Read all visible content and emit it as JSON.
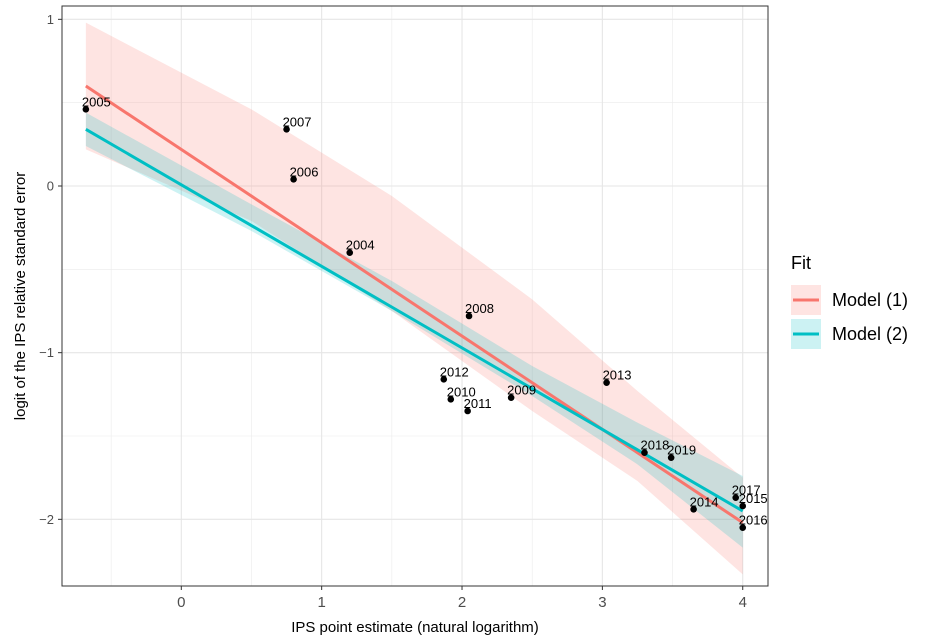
{
  "chart_data": {
    "type": "scatter",
    "title": "",
    "xlabel": "IPS point estimate (natural logarithm)",
    "ylabel": "logit of the IPS relative standard error",
    "xlim": [
      -0.85,
      4.18
    ],
    "ylim": [
      -2.4,
      1.08
    ],
    "x_ticks": [
      0,
      1,
      2,
      3,
      4
    ],
    "y_ticks": [
      1,
      0,
      -1,
      -2
    ],
    "x_tick_labels": [
      "0",
      "1",
      "2",
      "3",
      "4"
    ],
    "y_tick_labels": [
      "1",
      "0",
      "−1",
      "−2"
    ],
    "grid": true,
    "points": [
      {
        "label": "2005",
        "x": -0.68,
        "y": 0.46
      },
      {
        "label": "2007",
        "x": 0.75,
        "y": 0.34
      },
      {
        "label": "2006",
        "x": 0.8,
        "y": 0.04
      },
      {
        "label": "2004",
        "x": 1.2,
        "y": -0.4
      },
      {
        "label": "2008",
        "x": 2.05,
        "y": -0.78
      },
      {
        "label": "2012",
        "x": 1.87,
        "y": -1.16
      },
      {
        "label": "2010",
        "x": 1.92,
        "y": -1.28
      },
      {
        "label": "2011",
        "x": 2.04,
        "y": -1.35
      },
      {
        "label": "2009",
        "x": 2.35,
        "y": -1.27
      },
      {
        "label": "2013",
        "x": 3.03,
        "y": -1.18
      },
      {
        "label": "2018",
        "x": 3.3,
        "y": -1.6
      },
      {
        "label": "2019",
        "x": 3.49,
        "y": -1.63
      },
      {
        "label": "2017",
        "x": 3.95,
        "y": -1.87
      },
      {
        "label": "2015",
        "x": 4.0,
        "y": -1.92
      },
      {
        "label": "2014",
        "x": 3.65,
        "y": -1.94
      },
      {
        "label": "2016",
        "x": 4.0,
        "y": -2.05
      }
    ],
    "legend": {
      "title": "Fit",
      "position": "right"
    },
    "series": [
      {
        "name": "Model (1)",
        "color": "#F8766D",
        "x": [
          -0.68,
          4.0
        ],
        "y": [
          0.6,
          -2.02
        ],
        "band_x": [
          -0.68,
          0.5,
          1.5,
          2.5,
          3.25,
          4.0
        ],
        "band_upper": [
          0.98,
          0.46,
          -0.06,
          -0.68,
          -1.23,
          -1.75
        ],
        "band_lower": [
          0.22,
          -0.21,
          -0.75,
          -1.35,
          -1.77,
          -2.33
        ]
      },
      {
        "name": "Model (2)",
        "color": "#00BFC4",
        "x": [
          -0.68,
          4.0
        ],
        "y": [
          0.34,
          -1.95
        ],
        "band_x": [
          -0.68,
          0.5,
          1.5,
          2.5,
          3.25,
          4.0
        ],
        "band_upper": [
          0.44,
          -0.11,
          -0.57,
          -1.08,
          -1.42,
          -1.74
        ],
        "band_lower": [
          0.24,
          -0.27,
          -0.75,
          -1.26,
          -1.67,
          -2.17
        ]
      }
    ]
  }
}
